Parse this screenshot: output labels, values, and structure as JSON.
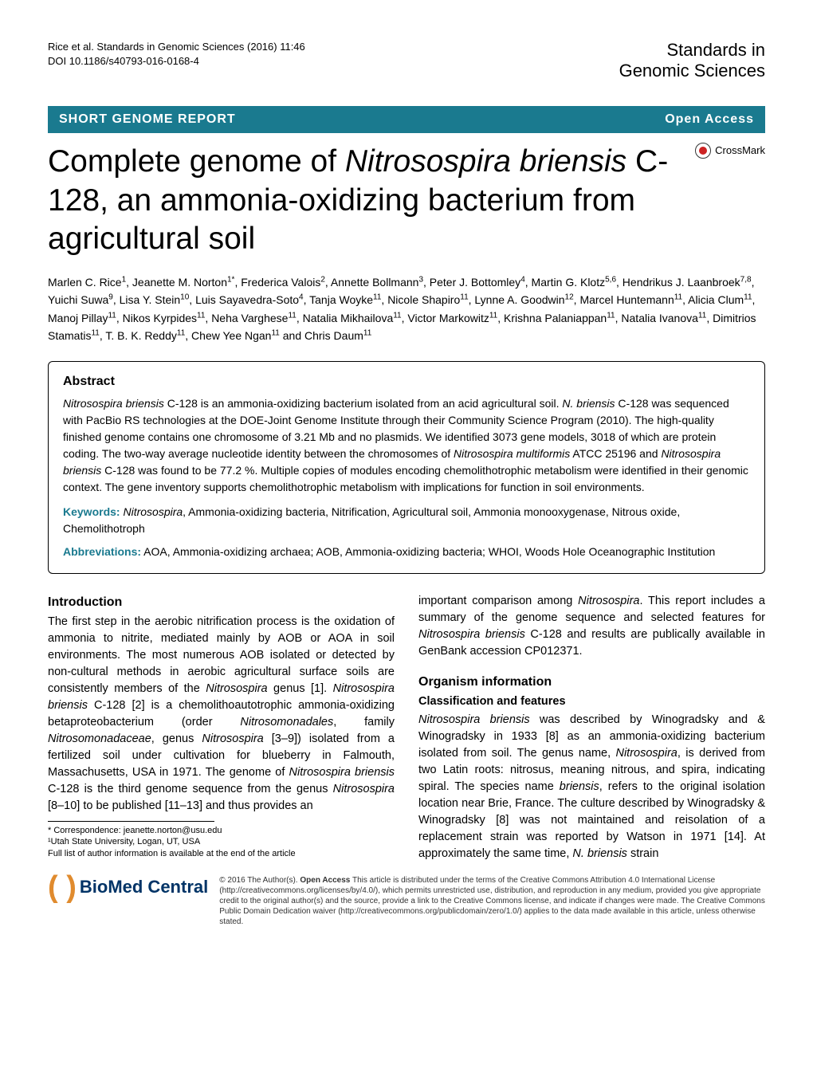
{
  "header": {
    "citation_line1": "Rice et al. Standards in Genomic Sciences  (2016) 11:46",
    "citation_line2": "DOI 10.1186/s40793-016-0168-4",
    "journal_line1": "Standards in",
    "journal_line2": "Genomic Sciences"
  },
  "banner": {
    "section_type": "SHORT GENOME REPORT",
    "access": "Open Access"
  },
  "crossmark": "CrossMark",
  "title_html": "Complete genome of <em>Nitrosospira briensis</em> C-128, an ammonia-oxidizing bacterium from agricultural soil",
  "authors_html": "Marlen C. Rice<sup>1</sup>, Jeanette M. Norton<sup>1*</sup>, Frederica Valois<sup>2</sup>, Annette Bollmann<sup>3</sup>, Peter J. Bottomley<sup>4</sup>, Martin G. Klotz<sup>5,6</sup>, Hendrikus J. Laanbroek<sup>7,8</sup>, Yuichi Suwa<sup>9</sup>, Lisa Y. Stein<sup>10</sup>, Luis Sayavedra-Soto<sup>4</sup>, Tanja Woyke<sup>11</sup>, Nicole Shapiro<sup>11</sup>, Lynne A. Goodwin<sup>12</sup>, Marcel Huntemann<sup>11</sup>, Alicia Clum<sup>11</sup>, Manoj Pillay<sup>11</sup>, Nikos Kyrpides<sup>11</sup>, Neha Varghese<sup>11</sup>, Natalia Mikhailova<sup>11</sup>, Victor Markowitz<sup>11</sup>, Krishna Palaniappan<sup>11</sup>, Natalia Ivanova<sup>11</sup>, Dimitrios Stamatis<sup>11</sup>, T. B. K. Reddy<sup>11</sup>, Chew Yee Ngan<sup>11</sup> and Chris Daum<sup>11</sup>",
  "abstract": {
    "heading": "Abstract",
    "text_html": "<em>Nitrosospira briensis</em> C-128 is an ammonia-oxidizing bacterium isolated from an acid agricultural soil. <em>N. briensis</em> C-128 was sequenced with PacBio RS technologies at the DOE-Joint Genome Institute through their Community Science Program (2010). The high-quality finished genome contains one chromosome of 3.21 Mb and no plasmids. We identified 3073 gene models, 3018 of which are protein coding. The two-way average nucleotide identity between the chromosomes of <em>Nitrosospira multiformis</em> ATCC 25196 and <em>Nitrosospira briensis</em> C-128 was found to be 77.2 %. Multiple copies of modules encoding chemolithotrophic metabolism were identified in their genomic context. The gene inventory supports chemolithotrophic metabolism with implications for function in soil environments.",
    "keywords_label": "Keywords:",
    "keywords_text_html": " <em>Nitrosospira</em>, Ammonia-oxidizing bacteria, Nitrification, Agricultural soil, Ammonia monooxygenase, Nitrous oxide, Chemolithotroph",
    "abbrev_label": "Abbreviations:",
    "abbrev_text": " AOA, Ammonia-oxidizing archaea; AOB, Ammonia-oxidizing bacteria; WHOI, Woods Hole Oceanographic Institution"
  },
  "columns": {
    "left": {
      "heading": "Introduction",
      "p1_html": "The first step in the aerobic nitrification process is the oxidation of ammonia to nitrite, mediated mainly by AOB or AOA in soil environments. The most numerous AOB isolated or detected by non-cultural methods in aerobic agricultural surface soils are consistently members of the <em>Nitrosospira</em> genus [1]. <em>Nitrosospira briensis</em> C-128 [2] is a chemolithoautotrophic ammonia-oxidizing betaproteobacterium (order <em>Nitrosomonadales</em>, family <em>Nitrosomonadaceae</em>, genus <em>Nitrosospira</em> [3–9]) isolated from a fertilized soil under cultivation for blueberry in Falmouth, Massachusetts, USA in 1971. The genome of <em>Nitrosospira briensis</em> C-128 is the third genome sequence from the genus <em>Nitrosospira</em> [8–10] to be published [11–13] and thus provides an"
    },
    "right": {
      "p1_html": "important comparison among <em>Nitrosospira</em>. This report includes a summary of the genome sequence and selected features for <em>Nitrosospira briensis</em> C-128 and results are publically available in GenBank accession CP012371.",
      "heading": "Organism information",
      "subheading": "Classification and features",
      "p2_html": "<em>Nitrosospira briensis</em> was described by Winogradsky and & Winogradsky in 1933 [8] as an ammonia-oxidizing bacterium isolated from soil. The genus name, <em>Nitrosospira</em>, is derived from two Latin roots: nitrosus, meaning nitrous, and spira, indicating spiral. The species name <em>briensis</em>, refers to the original isolation location near Brie, France. The culture described by Winogradsky & Winogradsky [8] was not maintained and reisolation of a replacement strain was reported by Watson in 1971 [14]. At approximately the same time, <em>N. briensis</em> strain"
    }
  },
  "footnotes": {
    "correspondence": "* Correspondence: jeanette.norton@usu.edu",
    "affiliation": "¹Utah State University, Logan, UT, USA",
    "full_list": "Full list of author information is available at the end of the article"
  },
  "footer": {
    "logo_text": "BioMed Central",
    "license_html": "© 2016 The Author(s). <strong>Open Access</strong> This article is distributed under the terms of the Creative Commons Attribution 4.0 International License (http://creativecommons.org/licenses/by/4.0/), which permits unrestricted use, distribution, and reproduction in any medium, provided you give appropriate credit to the original author(s) and the source, provide a link to the Creative Commons license, and indicate if changes were made. The Creative Commons Public Domain Dedication waiver (http://creativecommons.org/publicdomain/zero/1.0/) applies to the data made available in this article, unless otherwise stated."
  }
}
